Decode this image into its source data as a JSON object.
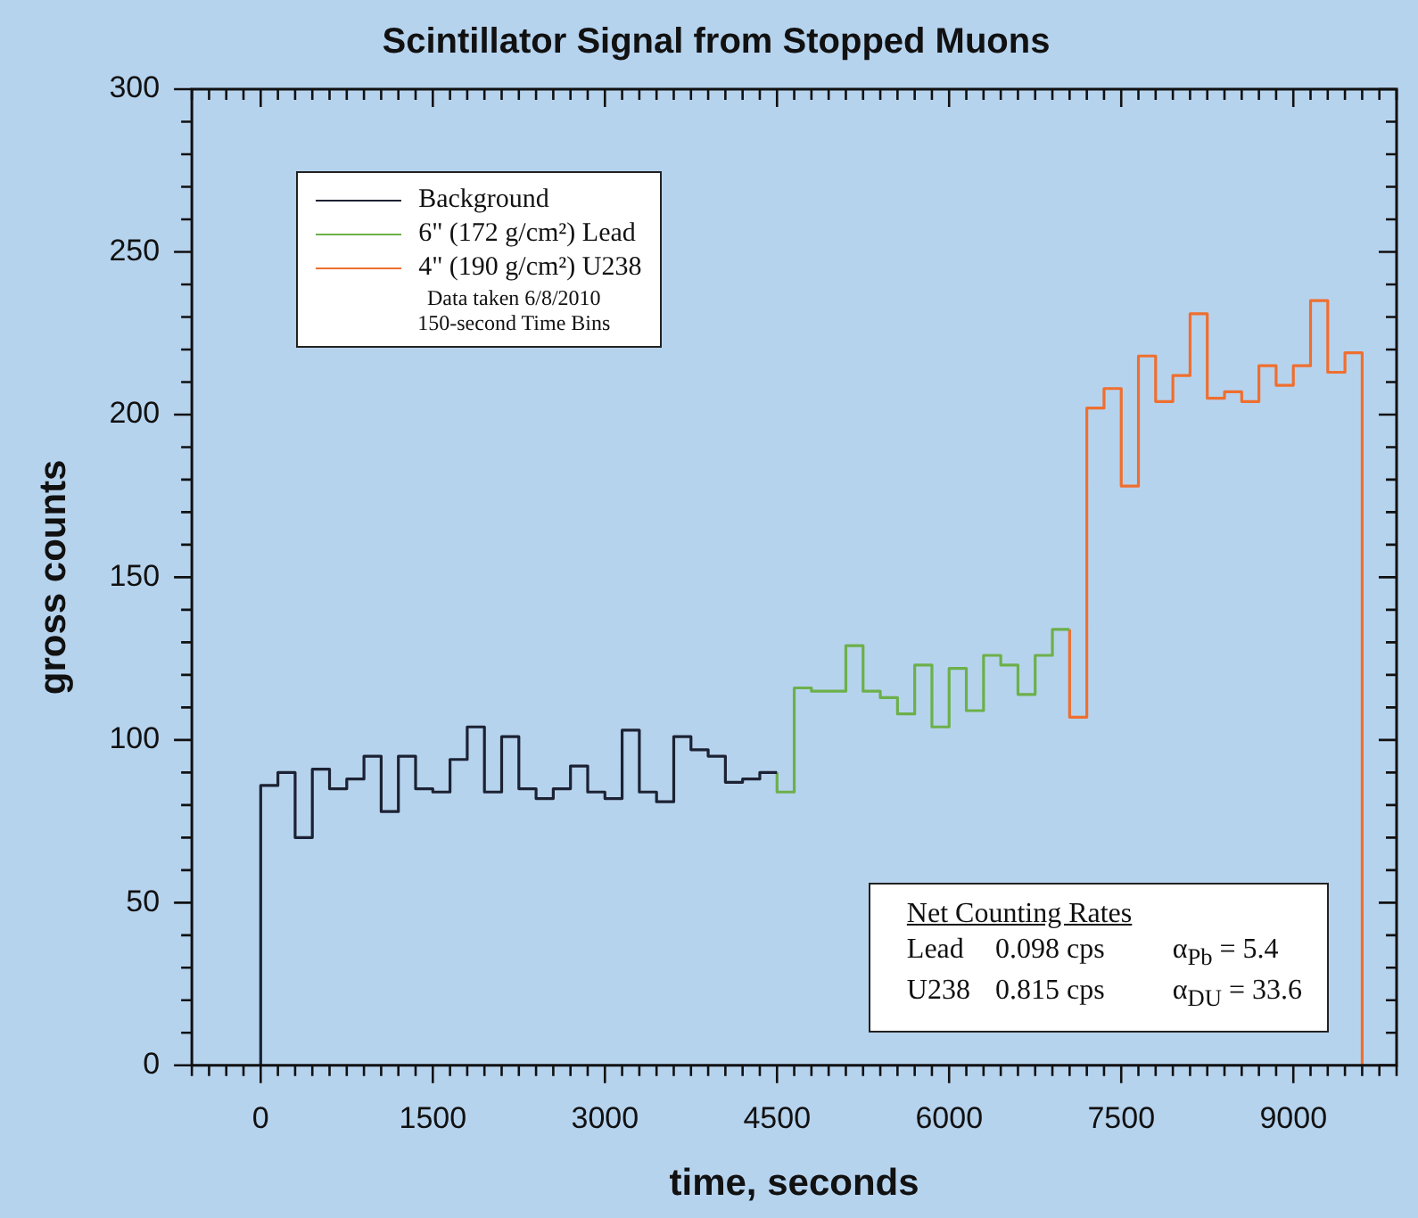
{
  "chart_data": {
    "type": "step",
    "title": "Scintillator Signal from Stopped Muons",
    "xlabel": "time, seconds",
    "ylabel": "gross counts",
    "xlim": [
      -600,
      9900
    ],
    "ylim": [
      0,
      300
    ],
    "xticks": [
      {
        "value": -600,
        "label": null
      },
      {
        "value": -450,
        "label": null
      },
      {
        "value": -300,
        "label": null
      },
      {
        "value": -150,
        "label": null
      },
      0,
      {
        "value": 150,
        "label": null
      },
      {
        "value": 300,
        "label": null
      },
      {
        "value": 450,
        "label": null
      },
      {
        "value": 600,
        "label": null
      },
      {
        "value": 750,
        "label": null
      },
      {
        "value": 900,
        "label": null
      },
      {
        "value": 1050,
        "label": null
      },
      {
        "value": 1200,
        "label": null
      },
      {
        "value": 1350,
        "label": null
      },
      1500,
      {
        "value": 1650,
        "label": null
      },
      {
        "value": 1800,
        "label": null
      },
      {
        "value": 1950,
        "label": null
      },
      {
        "value": 2100,
        "label": null
      },
      {
        "value": 2250,
        "label": null
      },
      {
        "value": 2400,
        "label": null
      },
      {
        "value": 2550,
        "label": null
      },
      {
        "value": 2700,
        "label": null
      },
      {
        "value": 2850,
        "label": null
      },
      3000,
      {
        "value": 3150,
        "label": null
      },
      {
        "value": 3300,
        "label": null
      },
      {
        "value": 3450,
        "label": null
      },
      {
        "value": 3600,
        "label": null
      },
      {
        "value": 3750,
        "label": null
      },
      {
        "value": 3900,
        "label": null
      },
      {
        "value": 4050,
        "label": null
      },
      {
        "value": 4200,
        "label": null
      },
      {
        "value": 4350,
        "label": null
      },
      4500,
      {
        "value": 4650,
        "label": null
      },
      {
        "value": 4800,
        "label": null
      },
      {
        "value": 4950,
        "label": null
      },
      {
        "value": 5100,
        "label": null
      },
      {
        "value": 5250,
        "label": null
      },
      {
        "value": 5400,
        "label": null
      },
      {
        "value": 5550,
        "label": null
      },
      {
        "value": 5700,
        "label": null
      },
      {
        "value": 5850,
        "label": null
      },
      6000,
      {
        "value": 6150,
        "label": null
      },
      {
        "value": 6300,
        "label": null
      },
      {
        "value": 6450,
        "label": null
      },
      {
        "value": 6600,
        "label": null
      },
      {
        "value": 6750,
        "label": null
      },
      {
        "value": 6900,
        "label": null
      },
      {
        "value": 7050,
        "label": null
      },
      {
        "value": 7200,
        "label": null
      },
      {
        "value": 7350,
        "label": null
      },
      7500,
      {
        "value": 7650,
        "label": null
      },
      {
        "value": 7800,
        "label": null
      },
      {
        "value": 7950,
        "label": null
      },
      {
        "value": 8100,
        "label": null
      },
      {
        "value": 8250,
        "label": null
      },
      {
        "value": 8400,
        "label": null
      },
      {
        "value": 8550,
        "label": null
      },
      {
        "value": 8700,
        "label": null
      },
      {
        "value": 8850,
        "label": null
      },
      9000,
      {
        "value": 9150,
        "label": null
      },
      {
        "value": 9300,
        "label": null
      },
      {
        "value": 9450,
        "label": null
      },
      {
        "value": 9600,
        "label": null
      },
      {
        "value": 9750,
        "label": null
      },
      {
        "value": 9900,
        "label": null
      }
    ],
    "yticks": [
      0,
      {
        "value": 10,
        "label": null
      },
      {
        "value": 20,
        "label": null
      },
      {
        "value": 30,
        "label": null
      },
      {
        "value": 40,
        "label": null
      },
      50,
      {
        "value": 60,
        "label": null
      },
      {
        "value": 70,
        "label": null
      },
      {
        "value": 80,
        "label": null
      },
      {
        "value": 90,
        "label": null
      },
      100,
      {
        "value": 110,
        "label": null
      },
      {
        "value": 120,
        "label": null
      },
      {
        "value": 130,
        "label": null
      },
      {
        "value": 140,
        "label": null
      },
      150,
      {
        "value": 160,
        "label": null
      },
      {
        "value": 170,
        "label": null
      },
      {
        "value": 180,
        "label": null
      },
      {
        "value": 190,
        "label": null
      },
      200,
      {
        "value": 210,
        "label": null
      },
      {
        "value": 220,
        "label": null
      },
      {
        "value": 230,
        "label": null
      },
      {
        "value": 240,
        "label": null
      },
      250,
      {
        "value": 260,
        "label": null
      },
      {
        "value": 270,
        "label": null
      },
      {
        "value": 280,
        "label": null
      },
      {
        "value": 290,
        "label": null
      },
      300
    ],
    "grid": false,
    "legend": "top left",
    "line_style": "solid",
    "marker": "none",
    "series": [
      {
        "name": "Background",
        "color": "#1c2233",
        "x": [
          0,
          150,
          300,
          450,
          600,
          750,
          900,
          1050,
          1200,
          1350,
          1500,
          1650,
          1800,
          1950,
          2100,
          2250,
          2400,
          2550,
          2700,
          2850,
          3000,
          3150,
          3300,
          3450,
          3600,
          3750,
          3900,
          4050,
          4200,
          4350,
          4500
        ],
        "values": [
          0,
          86,
          90,
          70,
          91,
          85,
          88,
          95,
          78,
          95,
          85,
          84,
          94,
          104,
          84,
          101,
          85,
          82,
          85,
          92,
          84,
          82,
          103,
          84,
          81,
          101,
          97,
          95,
          87,
          88,
          90
        ]
      },
      {
        "name": "6\" (172 g/cm²) Lead",
        "color": "#6cb04a",
        "x": [
          4500,
          4650,
          4800,
          4950,
          5100,
          5250,
          5400,
          5550,
          5700,
          5850,
          6000,
          6150,
          6300,
          6450,
          6600,
          6750,
          6900,
          7050
        ],
        "values": [
          90,
          84,
          116,
          115,
          115,
          129,
          115,
          113,
          108,
          123,
          104,
          122,
          109,
          126,
          123,
          114,
          126,
          134
        ]
      },
      {
        "name": "4\" (190 g/cm²) U238",
        "color": "#ef6f2e",
        "x": [
          7050,
          7200,
          7350,
          7500,
          7650,
          7800,
          7950,
          8100,
          8250,
          8400,
          8550,
          8700,
          8850,
          9000,
          9150,
          9300,
          9450,
          9600,
          9600
        ],
        "values": [
          134,
          107,
          202,
          208,
          178,
          218,
          204,
          212,
          231,
          205,
          207,
          204,
          215,
          209,
          215,
          235,
          213,
          219,
          0
        ]
      }
    ],
    "annotations": [
      "Data taken 6/8/2010",
      "150-second Time Bins",
      "Net Counting Rates",
      "Lead",
      "0.098 cps",
      "α$_{Pb}$ = 5.4",
      "U238",
      "0.815 cps",
      "α$_{DU}$ = 33.6"
    ]
  }
}
